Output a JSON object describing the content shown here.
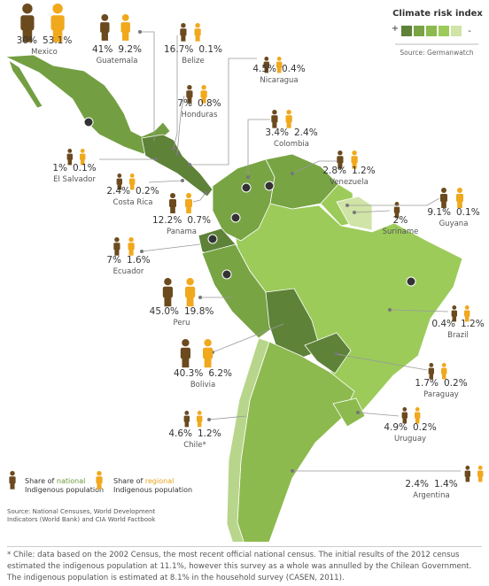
{
  "countries": [
    {
      "name": "Mexico",
      "national": "30%",
      "regional": "53.1%"
    },
    {
      "name": "Guatemala",
      "national": "41%",
      "regional": "9.2%"
    },
    {
      "name": "Belize",
      "national": "16.7%",
      "regional": "0.1%"
    },
    {
      "name": "Nicaragua",
      "national": "4.5%",
      "regional": "0.4%"
    },
    {
      "name": "Honduras",
      "national": "7%",
      "regional": "0.8%"
    },
    {
      "name": "Colombia",
      "national": "3.4%",
      "regional": "2.4%"
    },
    {
      "name": "Venezuela",
      "national": "2.8%",
      "regional": "1.2%"
    },
    {
      "name": "El Salvador",
      "national": "1%",
      "regional": "0.1%"
    },
    {
      "name": "Costa Rica",
      "national": "2.4%",
      "regional": "0.2%"
    },
    {
      "name": "Suriname",
      "national": "2%"
    },
    {
      "name": "Guyana",
      "national": "9.1%",
      "regional": "0.1%"
    },
    {
      "name": "Panama",
      "national": "12.2%",
      "regional": "0.7%"
    },
    {
      "name": "Ecuador",
      "national": "7%",
      "regional": "1.6%"
    },
    {
      "name": "Peru",
      "national": "45.0%",
      "regional": "19.8%"
    },
    {
      "name": "Brazil",
      "national": "0.4%",
      "regional": "1.2%"
    },
    {
      "name": "Bolivia",
      "national": "40.3%",
      "regional": "6.2%"
    },
    {
      "name": "Paraguay",
      "national": "1.7%",
      "regional": "0.2%"
    },
    {
      "name": "Chile*",
      "national": "4.6%",
      "regional": "1.2%"
    },
    {
      "name": "Uruguay",
      "national": "4.9%",
      "regional": "0.2%"
    },
    {
      "name": "Argentina",
      "national": "2.4%",
      "regional": "1.4%"
    }
  ],
  "climate_risk_index": {
    "title": "Climate risk index",
    "high": "+",
    "low": "-",
    "source": "Source: Germanwatch"
  },
  "legend": {
    "national": {
      "prefix": "Share of",
      "highlight": "national",
      "suffix": "Indigenous population"
    },
    "regional": {
      "prefix": "Share of",
      "highlight": "regional",
      "suffix": "Indigenous population"
    }
  },
  "sources": "Source: National Censuses, World Development Indicators (World Bank) and CIA World Factbook",
  "footnote": "* Chile: data based on the 2002 Census, the most recent official national census. The initial results of the 2012 census estimated the indigenous population at 11.1%, however this survey as a whole was annulled by the Chilean Government. The indigenous population is estimated at 8.1% in the household survey (CASEN, 2011)."
}
